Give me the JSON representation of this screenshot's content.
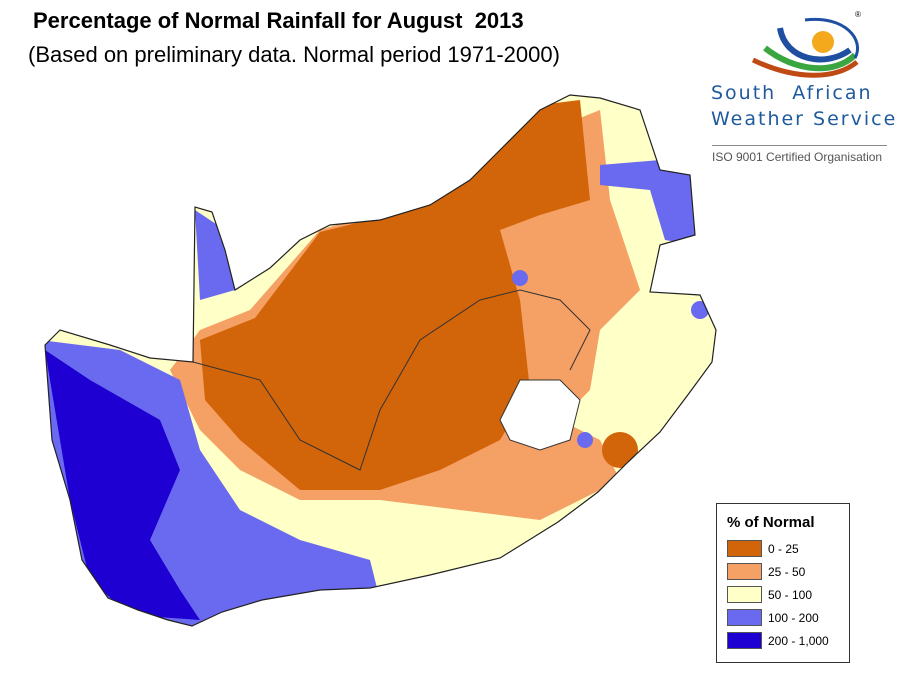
{
  "title": "Percentage of Normal Rainfall for August  2013",
  "subtitle": "(Based on preliminary data. Normal period 1971-2000)",
  "logo": {
    "line1": "South  African",
    "line2": "Weather Service",
    "certification": "ISO 9001 Certified Organisation",
    "mark": "®"
  },
  "legend": {
    "title": "% of Normal",
    "items": [
      {
        "label": "0 - 25",
        "color": "#d2640a"
      },
      {
        "label": "25 - 50",
        "color": "#f5a064"
      },
      {
        "label": "50 - 100",
        "color": "#ffffc8"
      },
      {
        "label": "100 - 200",
        "color": "#6a6af0"
      },
      {
        "label": "200 - 1,000",
        "color": "#1e00d2"
      }
    ]
  }
}
